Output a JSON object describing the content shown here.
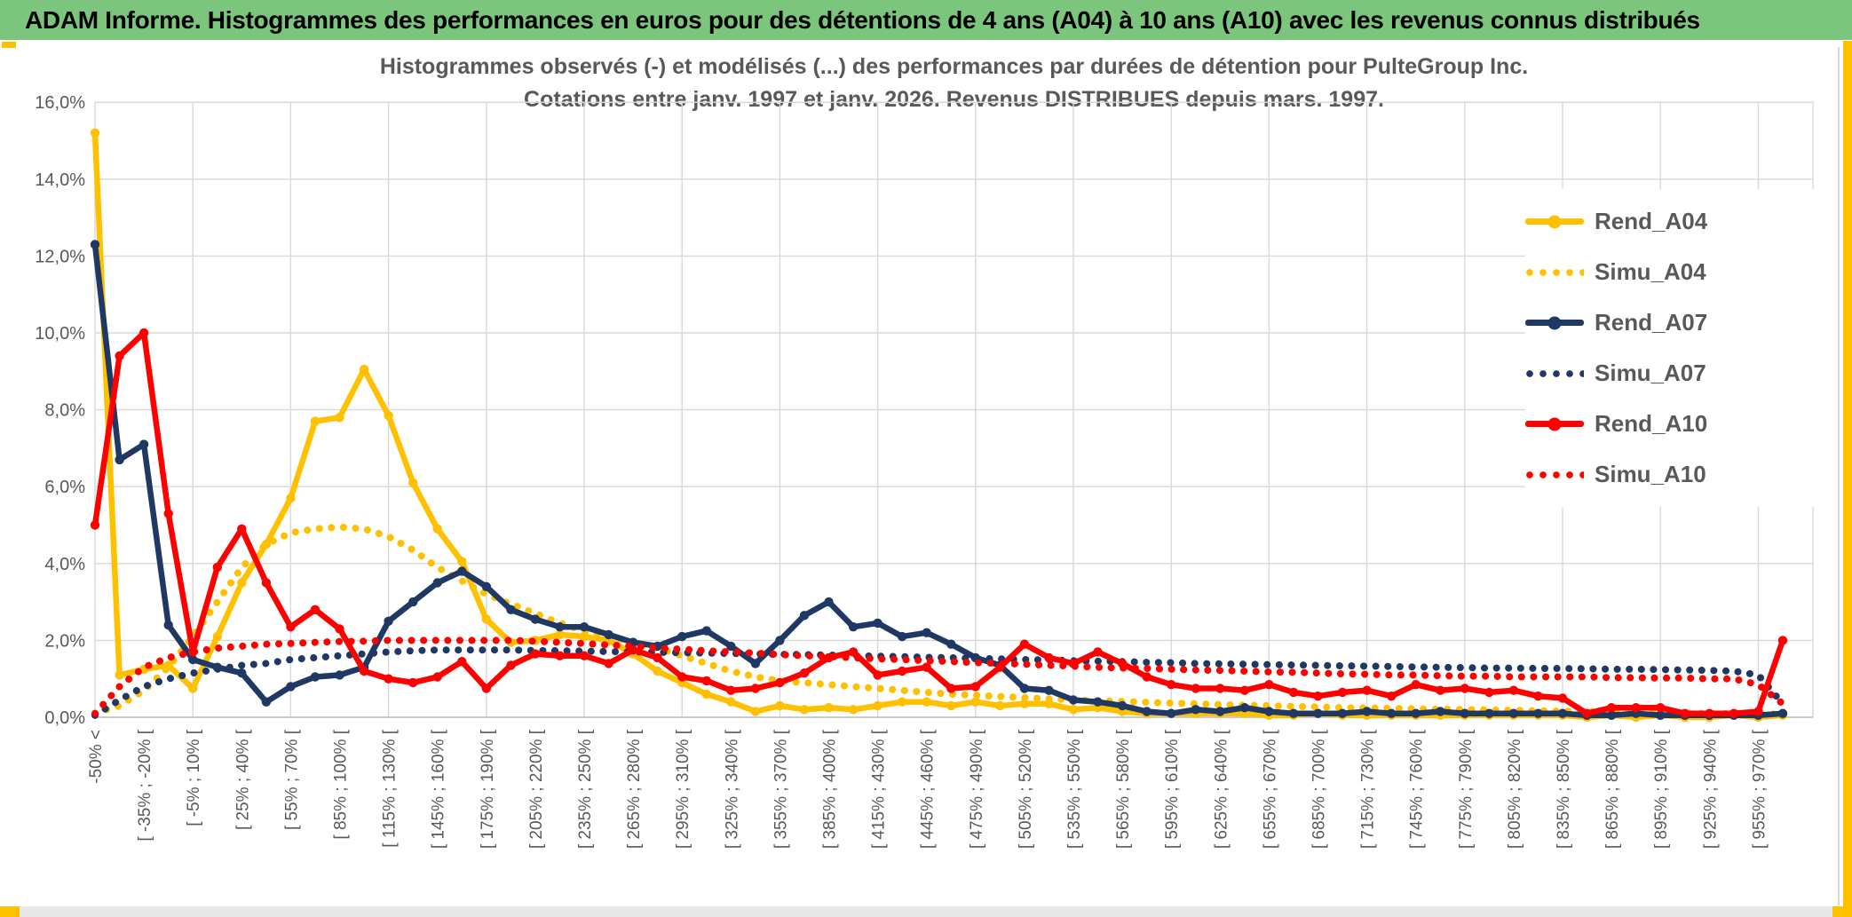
{
  "header": {
    "title": "ADAM Informe. Histogrammes des performances en euros pour des détentions de 4 ans (A04) à 10 ans (A10) avec les revenus connus distribués"
  },
  "colors": {
    "header_green": "#7CC57D",
    "accent_yellow": "#FFC000",
    "grid_grey": "#D9D9D9",
    "text_grey": "#595959",
    "gold": "#FFC000",
    "navy": "#1F3864",
    "red": "#FF0000"
  },
  "chart_data": {
    "type": "line",
    "title_line1": "Histogrammes observés (-) et modélisés (...) des performances par durées de détention pour PulteGroup Inc.",
    "title_line2": "Cotations entre janv. 1997 et janv. 2026. Revenus DISTRIBUES depuis mars. 1997.",
    "ylabel": "",
    "xlabel": "",
    "ylim": [
      0,
      16
    ],
    "grid": true,
    "legend_position": "right",
    "y_ticks": [
      "0,0%",
      "2,0%",
      "4,0%",
      "6,0%",
      "8,0%",
      "10,0%",
      "12,0%",
      "14,0%",
      "16,0%"
    ],
    "n_bins": 70,
    "x_labels_every": 2,
    "x_labels": [
      "-50% <",
      "[ -35% ; -20% [",
      "[ -5% ; 10% [",
      "[ 25% ; 40% [",
      "[ 55% ; 70% [",
      "[ 85% ; 100% [",
      "[ 115% ; 130% [",
      "[ 145% ; 160% [",
      "[ 175% ; 190% [",
      "[ 205% ; 220% [",
      "[ 235% ; 250% [",
      "[ 265% ; 280% [",
      "[ 295% ; 310% [",
      "[ 325% ; 340% [",
      "[ 355% ; 370% [",
      "[ 385% ; 400% [",
      "[ 415% ; 430% [",
      "[ 445% ; 460% [",
      "[ 475% ; 490% [",
      "[ 505% ; 520% [",
      "[ 535% ; 550% [",
      "[ 565% ; 580% [",
      "[ 595% ; 610% [",
      "[ 625% ; 640% [",
      "[ 655% ; 670% [",
      "[ 685% ; 700% [",
      "[ 715% ; 730% [",
      "[ 745% ; 760% [",
      "[ 775% ; 790% [",
      "[ 805% ; 820% [",
      "[ 835% ; 850% [",
      "[ 865% ; 880% [",
      "[ 895% ; 910% [",
      "[ 925% ; 940% [",
      "[ 955% ; 970% ["
    ],
    "series": [
      {
        "name": "Rend_A04",
        "style": "solid",
        "color": "#FFC000",
        "values": [
          15.2,
          1.1,
          1.25,
          1.35,
          0.75,
          2.1,
          3.5,
          4.5,
          5.7,
          7.7,
          7.8,
          9.05,
          7.85,
          6.1,
          4.9,
          4.05,
          2.55,
          1.95,
          2.0,
          2.15,
          2.1,
          2.0,
          1.65,
          1.2,
          0.9,
          0.6,
          0.4,
          0.15,
          0.3,
          0.2,
          0.25,
          0.2,
          0.3,
          0.4,
          0.4,
          0.3,
          0.4,
          0.3,
          0.35,
          0.35,
          0.2,
          0.25,
          0.15,
          0.1,
          0.1,
          0.1,
          0.1,
          0.1,
          0.05,
          0.05,
          0.1,
          0.05,
          0.05,
          0.05,
          0.05,
          0.05,
          0.05,
          0.05,
          0.05,
          0.05,
          0.05,
          0,
          0.05,
          0,
          0.05,
          0,
          0,
          0.05,
          0,
          0.05
        ]
      },
      {
        "name": "Simu_A04",
        "style": "dotted",
        "color": "#FFC000",
        "values": [
          0.1,
          0.3,
          0.7,
          1.3,
          2.1,
          3.0,
          3.9,
          4.5,
          4.8,
          4.9,
          4.95,
          4.9,
          4.7,
          4.35,
          3.9,
          3.55,
          3.2,
          2.95,
          2.7,
          2.45,
          2.25,
          2.1,
          1.95,
          1.8,
          1.6,
          1.4,
          1.2,
          1.05,
          0.95,
          0.9,
          0.85,
          0.8,
          0.75,
          0.7,
          0.65,
          0.6,
          0.57,
          0.54,
          0.51,
          0.48,
          0.45,
          0.43,
          0.41,
          0.39,
          0.37,
          0.35,
          0.33,
          0.31,
          0.3,
          0.28,
          0.27,
          0.25,
          0.24,
          0.23,
          0.22,
          0.21,
          0.2,
          0.19,
          0.18,
          0.17,
          0.16,
          0.15,
          0.14,
          0.13,
          0.12,
          0.11,
          0.1,
          0.1,
          0.09,
          0.08
        ]
      },
      {
        "name": "Rend_A07",
        "style": "solid",
        "color": "#1F3864",
        "values": [
          12.3,
          6.7,
          7.1,
          2.4,
          1.5,
          1.3,
          1.15,
          0.4,
          0.8,
          1.05,
          1.1,
          1.3,
          2.5,
          3.0,
          3.5,
          3.8,
          3.4,
          2.8,
          2.55,
          2.35,
          2.35,
          2.15,
          1.95,
          1.85,
          2.1,
          2.25,
          1.85,
          1.4,
          2.0,
          2.65,
          3.0,
          2.35,
          2.45,
          2.1,
          2.2,
          1.9,
          1.55,
          1.35,
          0.75,
          0.7,
          0.45,
          0.4,
          0.3,
          0.15,
          0.1,
          0.2,
          0.15,
          0.25,
          0.15,
          0.1,
          0.1,
          0.1,
          0.15,
          0.1,
          0.1,
          0.15,
          0.1,
          0.1,
          0.1,
          0.1,
          0.1,
          0.05,
          0.05,
          0.1,
          0.05,
          0.05,
          0.05,
          0.05,
          0.05,
          0.1
        ]
      },
      {
        "name": "Simu_A07",
        "style": "dotted",
        "color": "#1F3864",
        "values": [
          0.05,
          0.45,
          0.8,
          1.0,
          1.15,
          1.25,
          1.35,
          1.4,
          1.5,
          1.55,
          1.6,
          1.65,
          1.7,
          1.73,
          1.75,
          1.75,
          1.75,
          1.75,
          1.74,
          1.73,
          1.72,
          1.71,
          1.7,
          1.69,
          1.68,
          1.67,
          1.66,
          1.65,
          1.64,
          1.63,
          1.62,
          1.6,
          1.59,
          1.58,
          1.56,
          1.55,
          1.53,
          1.52,
          1.5,
          1.49,
          1.47,
          1.46,
          1.45,
          1.43,
          1.42,
          1.4,
          1.39,
          1.38,
          1.37,
          1.36,
          1.35,
          1.34,
          1.33,
          1.32,
          1.31,
          1.3,
          1.29,
          1.28,
          1.28,
          1.27,
          1.27,
          1.26,
          1.25,
          1.25,
          1.24,
          1.23,
          1.22,
          1.2,
          1.1,
          0.35
        ]
      },
      {
        "name": "Rend_A10",
        "style": "solid",
        "color": "#FF0000",
        "values": [
          5.0,
          9.4,
          10.0,
          5.3,
          1.7,
          3.9,
          4.9,
          3.5,
          2.35,
          2.8,
          2.3,
          1.2,
          1.0,
          0.9,
          1.05,
          1.45,
          0.75,
          1.35,
          1.65,
          1.6,
          1.6,
          1.4,
          1.75,
          1.55,
          1.05,
          0.95,
          0.7,
          0.75,
          0.9,
          1.15,
          1.55,
          1.7,
          1.1,
          1.2,
          1.3,
          0.75,
          0.8,
          1.3,
          1.9,
          1.55,
          1.4,
          1.7,
          1.4,
          1.05,
          0.85,
          0.75,
          0.75,
          0.7,
          0.85,
          0.65,
          0.55,
          0.65,
          0.7,
          0.55,
          0.85,
          0.7,
          0.75,
          0.65,
          0.7,
          0.55,
          0.5,
          0.1,
          0.25,
          0.25,
          0.25,
          0.1,
          0.1,
          0.1,
          0.15,
          2.0
        ]
      },
      {
        "name": "Simu_A10",
        "style": "dotted",
        "color": "#FF0000",
        "values": [
          0.1,
          0.8,
          1.3,
          1.55,
          1.7,
          1.8,
          1.85,
          1.9,
          1.92,
          1.95,
          1.97,
          1.98,
          2.0,
          2.0,
          2.0,
          2.0,
          2.0,
          2.0,
          1.98,
          1.95,
          1.92,
          1.88,
          1.85,
          1.8,
          1.77,
          1.73,
          1.7,
          1.67,
          1.63,
          1.6,
          1.58,
          1.55,
          1.52,
          1.5,
          1.47,
          1.45,
          1.42,
          1.4,
          1.38,
          1.35,
          1.33,
          1.3,
          1.28,
          1.27,
          1.25,
          1.23,
          1.22,
          1.2,
          1.18,
          1.17,
          1.15,
          1.13,
          1.12,
          1.1,
          1.1,
          1.08,
          1.07,
          1.07,
          1.05,
          1.05,
          1.05,
          1.05,
          1.03,
          1.03,
          1.02,
          1.02,
          1.0,
          1.0,
          0.85,
          0.35
        ]
      }
    ]
  }
}
